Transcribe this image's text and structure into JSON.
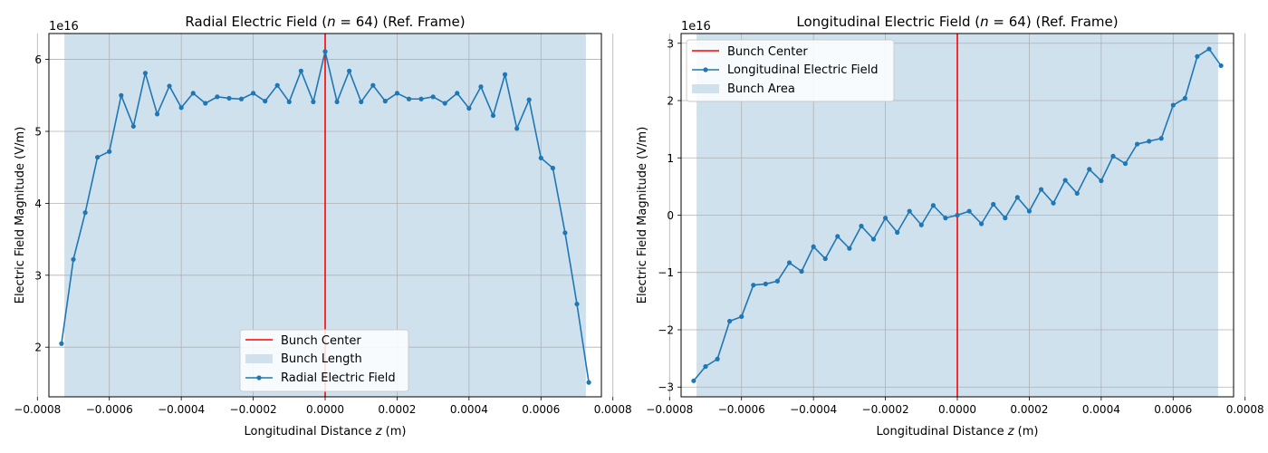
{
  "chart_data": [
    {
      "type": "line",
      "title": "Radial Electric Field (",
      "title_var": "n",
      "title_rest": " = 64) (Ref. Frame)",
      "xlabel": "Longitudinal Distance ",
      "xlabel_var": "z",
      "xlabel_unit": " (m)",
      "ylabel": "Electric Field Magnitude (V/m)",
      "offset_text": "1e16",
      "xlim": [
        -0.000768,
        0.000768
      ],
      "ylim": [
        1.31,
        6.36
      ],
      "xticks": [
        -0.0008,
        -0.0006,
        -0.0004,
        -0.0002,
        0.0,
        0.0002,
        0.0004,
        0.0006,
        0.0008
      ],
      "xtick_labels": [
        "−0.0008",
        "−0.0006",
        "−0.0004",
        "−0.0002",
        "0.0000",
        "0.0002",
        "0.0004",
        "0.0006",
        "0.0008"
      ],
      "yticks": [
        2,
        3,
        4,
        5,
        6
      ],
      "ytick_labels": [
        "2",
        "3",
        "4",
        "5",
        "6"
      ],
      "grid": true,
      "legend_position": "lower center",
      "legend": [
        "Bunch Center",
        "Bunch Length",
        "Radial Electric Field"
      ],
      "bunch_center": 0.0,
      "bunch_region": [
        -0.000725,
        0.000725
      ],
      "colors": {
        "series": "#1f77b4",
        "center": "#ff0000",
        "region": "#d0e1ee"
      },
      "series": [
        {
          "name": "Radial Electric Field",
          "x": [
            -0.000733,
            -0.0007,
            -0.000667,
            -0.000633,
            -0.0006,
            -0.000567,
            -0.000533,
            -0.0005,
            -0.000467,
            -0.000433,
            -0.0004,
            -0.000367,
            -0.000333,
            -0.0003,
            -0.000267,
            -0.000233,
            -0.0002,
            -0.000167,
            -0.000133,
            -0.0001,
            -6.7e-05,
            -3.3e-05,
            0.0,
            3.3e-05,
            6.7e-05,
            0.0001,
            0.000133,
            0.000167,
            0.0002,
            0.000233,
            0.000267,
            0.0003,
            0.000333,
            0.000367,
            0.0004,
            0.000433,
            0.000467,
            0.0005,
            0.000533,
            0.000567,
            0.0006,
            0.000633,
            0.000667,
            0.0007,
            0.000733
          ],
          "y": [
            2.05,
            3.22,
            3.87,
            4.64,
            4.72,
            5.5,
            5.07,
            5.81,
            5.24,
            5.63,
            5.33,
            5.53,
            5.39,
            5.48,
            5.46,
            5.45,
            5.53,
            5.42,
            5.64,
            5.41,
            5.84,
            5.41,
            6.11,
            5.41,
            5.84,
            5.41,
            5.64,
            5.42,
            5.53,
            5.45,
            5.45,
            5.48,
            5.39,
            5.53,
            5.32,
            5.62,
            5.22,
            5.79,
            5.04,
            5.44,
            4.63,
            4.49,
            3.59,
            2.6,
            1.51
          ]
        }
      ]
    },
    {
      "type": "line",
      "title": "Longitudinal Electric Field (",
      "title_var": "n",
      "title_rest": " = 64) (Ref. Frame)",
      "xlabel": "Longitudinal Distance ",
      "xlabel_var": "z",
      "xlabel_unit": " (m)",
      "ylabel": "Electric Field Magnitude (V/m)",
      "offset_text": "1e16",
      "xlim": [
        -0.000768,
        0.000768
      ],
      "ylim": [
        -3.17,
        3.17
      ],
      "xticks": [
        -0.0008,
        -0.0006,
        -0.0004,
        -0.0002,
        0.0,
        0.0002,
        0.0004,
        0.0006,
        0.0008
      ],
      "xtick_labels": [
        "−0.0008",
        "−0.0006",
        "−0.0004",
        "−0.0002",
        "0.0000",
        "0.0002",
        "0.0004",
        "0.0006",
        "0.0008"
      ],
      "yticks": [
        -3,
        -2,
        -1,
        0,
        1,
        2,
        3
      ],
      "ytick_labels": [
        "−3",
        "−2",
        "−1",
        "0",
        "1",
        "2",
        "3"
      ],
      "grid": true,
      "legend_position": "upper left",
      "legend": [
        "Bunch Center",
        "Longitudinal Electric Field",
        "Bunch Area"
      ],
      "bunch_center": 0.0,
      "bunch_region": [
        -0.000725,
        0.000725
      ],
      "colors": {
        "series": "#1f77b4",
        "center": "#ff0000",
        "region": "#d0e1ee"
      },
      "series": [
        {
          "name": "Longitudinal Electric Field",
          "x": [
            -0.000733,
            -0.0007,
            -0.000667,
            -0.000633,
            -0.0006,
            -0.000567,
            -0.000533,
            -0.0005,
            -0.000467,
            -0.000433,
            -0.0004,
            -0.000367,
            -0.000333,
            -0.0003,
            -0.000267,
            -0.000233,
            -0.0002,
            -0.000167,
            -0.000133,
            -0.0001,
            -6.7e-05,
            -3.3e-05,
            0.0,
            3.3e-05,
            6.7e-05,
            0.0001,
            0.000133,
            0.000167,
            0.0002,
            0.000233,
            0.000267,
            0.0003,
            0.000333,
            0.000367,
            0.0004,
            0.000433,
            0.000467,
            0.0005,
            0.000533,
            0.000567,
            0.0006,
            0.000633,
            0.000667,
            0.0007,
            0.000733
          ],
          "y": [
            -2.89,
            -2.64,
            -2.51,
            -1.85,
            -1.77,
            -1.22,
            -1.2,
            -1.15,
            -0.83,
            -0.98,
            -0.55,
            -0.76,
            -0.37,
            -0.58,
            -0.19,
            -0.42,
            -0.05,
            -0.3,
            0.07,
            -0.17,
            0.17,
            -0.05,
            0.0,
            0.07,
            -0.15,
            0.19,
            -0.05,
            0.31,
            0.07,
            0.45,
            0.21,
            0.61,
            0.38,
            0.8,
            0.6,
            1.03,
            0.9,
            1.24,
            1.29,
            1.34,
            1.92,
            2.04,
            2.77,
            2.9,
            2.61
          ]
        }
      ]
    }
  ]
}
